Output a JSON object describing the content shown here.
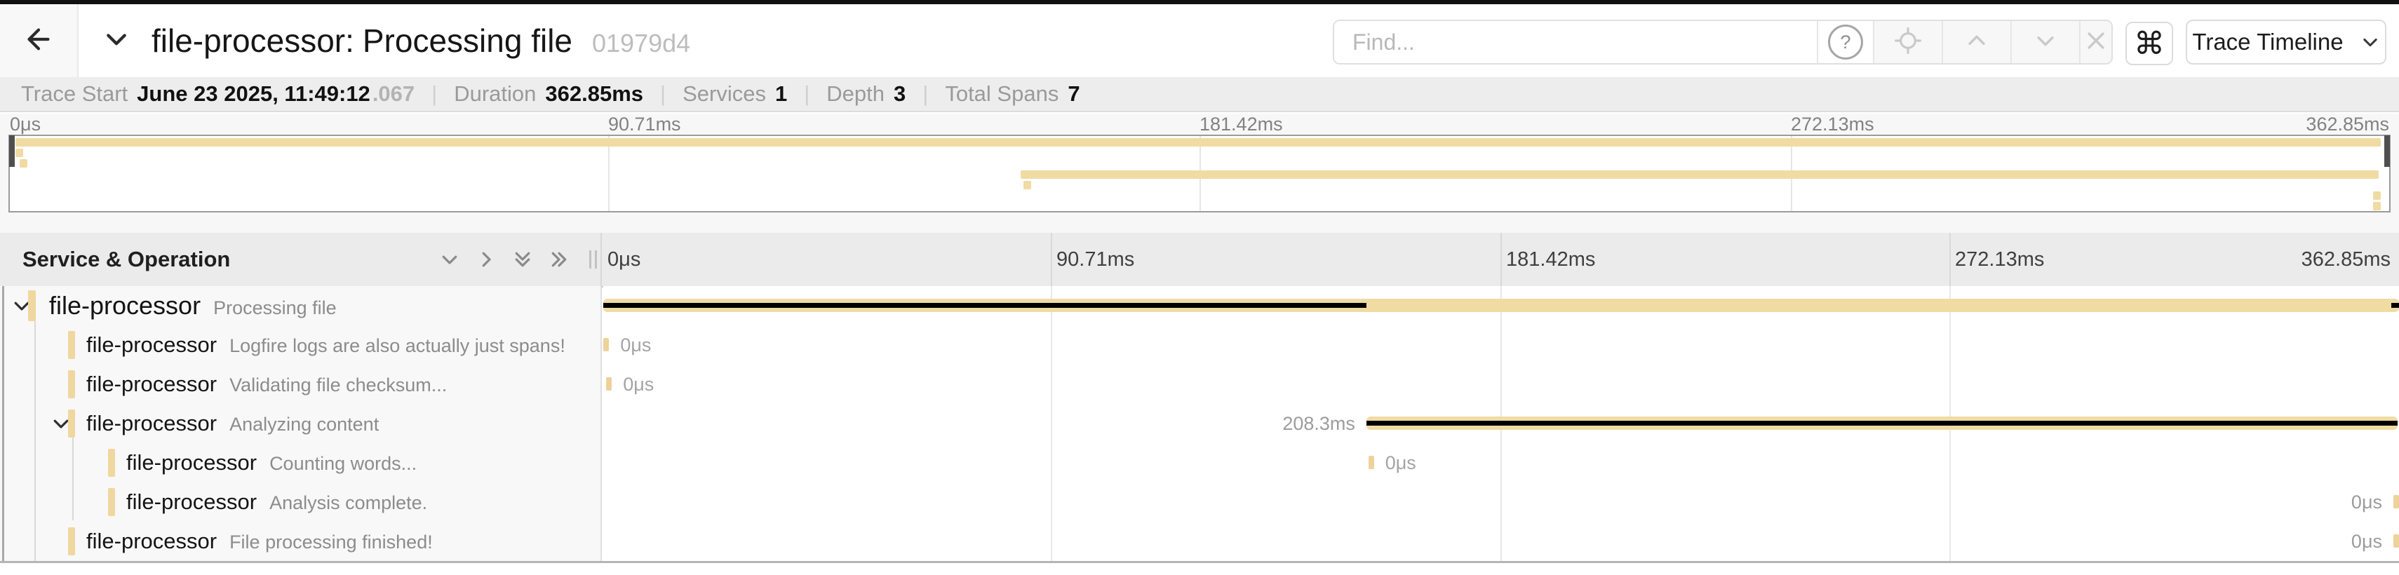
{
  "header": {
    "back_icon": "arrow-left",
    "collapse_icon": "chevron-down",
    "title_service": "file-processor",
    "title_separator": ": ",
    "title_operation": "Processing file",
    "trace_id_short": "01979d4",
    "find": {
      "placeholder": "Find...",
      "help_icon": "question-circle",
      "buttons": [
        {
          "name": "locate",
          "icon": "crosshair"
        },
        {
          "name": "previous-result",
          "icon": "chevron-up"
        },
        {
          "name": "next-result",
          "icon": "chevron-down"
        },
        {
          "name": "clear",
          "icon": "x"
        }
      ]
    },
    "shortcut_button": {
      "icon": "command"
    },
    "view_dropdown": {
      "label": "Trace Timeline",
      "icon": "chevron-down"
    }
  },
  "summary": {
    "items": [
      {
        "label": "Trace Start",
        "value": "June 23 2025, 11:49:12",
        "suffix": ".067"
      },
      {
        "label": "Duration",
        "value": "362.85ms"
      },
      {
        "label": "Services",
        "value": "1"
      },
      {
        "label": "Depth",
        "value": "3"
      },
      {
        "label": "Total Spans",
        "value": "7"
      }
    ]
  },
  "minimap": {
    "ticks": [
      "0μs",
      "90.71ms",
      "181.42ms",
      "272.13ms",
      "362.85ms"
    ]
  },
  "timeline_header": {
    "left_title": "Service & Operation",
    "icons": [
      "chevron-down",
      "chevron-right",
      "double-chevron-down",
      "double-chevron-right"
    ],
    "ticks": [
      "0μs",
      "90.71ms",
      "181.42ms",
      "272.13ms",
      "362.85ms"
    ]
  },
  "trace": {
    "duration_ms": 362.85,
    "spans": [
      {
        "service": "file-processor",
        "operation": "Processing file",
        "depth": 0,
        "expander": "chevron-down",
        "start_ms": 0,
        "duration_ms": 362.85,
        "duration_label": "",
        "label_side": "none",
        "critical_path_ms": [
          [
            0,
            154.2
          ],
          [
            361.3,
            362.85
          ]
        ]
      },
      {
        "service": "file-processor",
        "operation": "Logfire logs are also actually just spans!",
        "depth": 1,
        "start_ms": 0.05,
        "duration_ms": 0,
        "duration_label": "0μs",
        "label_side": "right",
        "critical_path_ms": []
      },
      {
        "service": "file-processor",
        "operation": "Validating file checksum...",
        "depth": 1,
        "start_ms": 0.6,
        "duration_ms": 0,
        "duration_label": "0μs",
        "label_side": "right",
        "critical_path_ms": []
      },
      {
        "service": "file-processor",
        "operation": "Analyzing content",
        "depth": 1,
        "expander": "chevron-down",
        "start_ms": 154.2,
        "duration_ms": 208.3,
        "duration_label": "208.3ms",
        "label_side": "left",
        "critical_path_ms": [
          [
            154.2,
            362.6
          ]
        ]
      },
      {
        "service": "file-processor",
        "operation": "Counting words...",
        "depth": 2,
        "start_ms": 154.6,
        "duration_ms": 0,
        "duration_label": "0μs",
        "label_side": "right",
        "critical_path_ms": []
      },
      {
        "service": "file-processor",
        "operation": "Analysis complete.",
        "depth": 2,
        "start_ms": 362.3,
        "duration_ms": 0,
        "duration_label": "0μs",
        "label_side": "left",
        "critical_path_ms": []
      },
      {
        "service": "file-processor",
        "operation": "File processing finished!",
        "depth": 1,
        "start_ms": 362.55,
        "duration_ms": 0,
        "duration_label": "0μs",
        "label_side": "left",
        "critical_path_ms": []
      }
    ]
  },
  "colors": {
    "span_bar": "#f0dba3",
    "span_tick": "#eed29a",
    "critical_path": "#000000"
  }
}
